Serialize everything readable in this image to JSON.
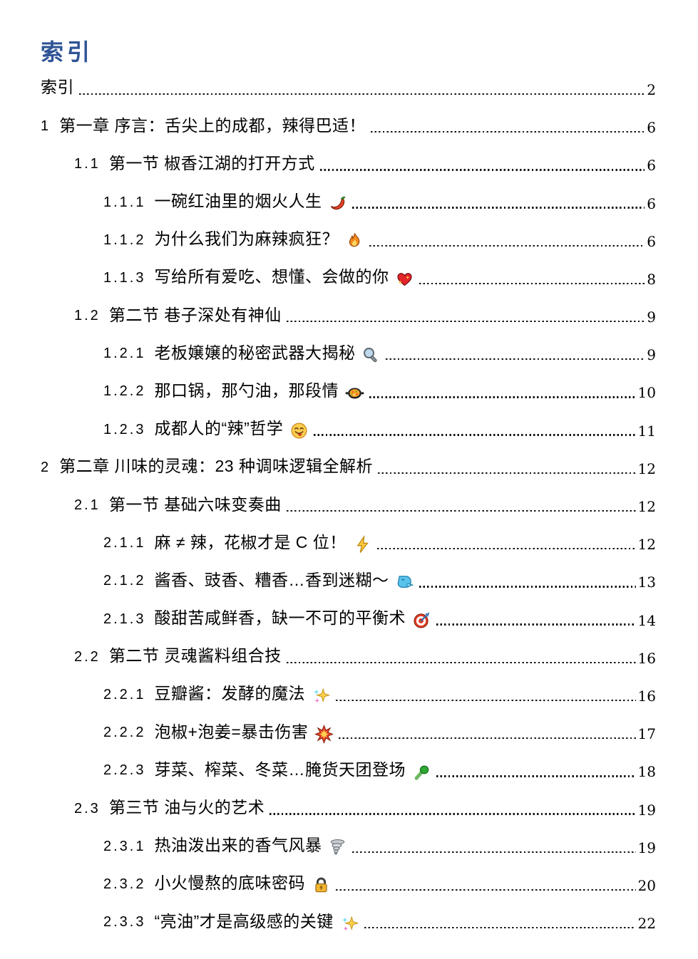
{
  "page": {
    "heading": "索引"
  },
  "colors": {
    "heading_blue": "#2F5496",
    "text": "#000000",
    "leader_dots": "#161616"
  },
  "toc": {
    "entries": [
      {
        "num": "",
        "title": "索引",
        "icon": "",
        "page": "2",
        "level": 0
      },
      {
        "num": "1",
        "title": "第一章 序言：舌尖上的成都，辣得巴适！",
        "icon": "",
        "page": "6",
        "level": 0
      },
      {
        "num": "1.1",
        "title": "第一节 椒香江湖的打开方式",
        "icon": "",
        "page": "6",
        "level": 1
      },
      {
        "num": "1.1.1",
        "title": "一碗红油里的烟火人生",
        "icon": "chili-icon",
        "page": "6",
        "level": 2
      },
      {
        "num": "1.1.2",
        "title": "为什么我们为麻辣疯狂？",
        "icon": "fire-icon",
        "page": "6",
        "level": 2
      },
      {
        "num": "1.1.3",
        "title": "写给所有爱吃、想懂、会做的你",
        "icon": "sparkling-heart-icon",
        "page": "8",
        "level": 2
      },
      {
        "num": "1.2",
        "title": "第二节 巷子深处有神仙",
        "icon": "",
        "page": "9",
        "level": 1
      },
      {
        "num": "1.2.1",
        "title": "老板嬢嬢的秘密武器大揭秘",
        "icon": "magnifier-icon",
        "page": "9",
        "level": 2
      },
      {
        "num": "1.2.2",
        "title": "那口锅，那勺油，那段情",
        "icon": "pan-of-food-icon",
        "page": "10",
        "level": 2
      },
      {
        "num": "1.2.3",
        "title": "成都人的“辣”哲学",
        "icon": "savoring-face-icon",
        "page": "11",
        "level": 2
      },
      {
        "num": "2",
        "title": "第二章 川味的灵魂：23 种调味逻辑全解析",
        "icon": "",
        "page": "12",
        "level": 0
      },
      {
        "num": "2.1",
        "title": "第一节 基础六味变奏曲",
        "icon": "",
        "page": "12",
        "level": 1
      },
      {
        "num": "2.1.1",
        "title": "麻 ≠ 辣，花椒才是 C 位！",
        "icon": "lightning-icon",
        "page": "12",
        "level": 2
      },
      {
        "num": "2.1.2",
        "title": "酱香、豉香、糟香…香到迷糊～",
        "icon": "wind-face-icon",
        "page": "13",
        "level": 2
      },
      {
        "num": "2.1.3",
        "title": "酸甜苦咸鲜香，缺一不可的平衡术",
        "icon": "target-icon",
        "page": "14",
        "level": 2
      },
      {
        "num": "2.2",
        "title": "第二节 灵魂酱料组合技",
        "icon": "",
        "page": "16",
        "level": 1
      },
      {
        "num": "2.2.1",
        "title": "豆瓣酱：发酵的魔法",
        "icon": "sparkles-icon",
        "page": "16",
        "level": 2
      },
      {
        "num": "2.2.2",
        "title": "泡椒+泡姜=暴击伤害",
        "icon": "collision-icon",
        "page": "17",
        "level": 2
      },
      {
        "num": "2.2.3",
        "title": "芽菜、榨菜、冬菜…腌货天团登场",
        "icon": "leafy-green-icon",
        "page": "18",
        "level": 2
      },
      {
        "num": "2.3",
        "title": "第三节 油与火的艺术",
        "icon": "",
        "page": "19",
        "level": 1
      },
      {
        "num": "2.3.1",
        "title": "热油泼出来的香气风暴",
        "icon": "tornado-icon",
        "page": "19",
        "level": 2
      },
      {
        "num": "2.3.2",
        "title": "小火慢熬的底味密码",
        "icon": "lock-icon",
        "page": "20",
        "level": 2
      },
      {
        "num": "2.3.3",
        "title": "“亮油”才是高级感的关键",
        "icon": "sparkles-icon",
        "page": "22",
        "level": 2
      }
    ]
  }
}
